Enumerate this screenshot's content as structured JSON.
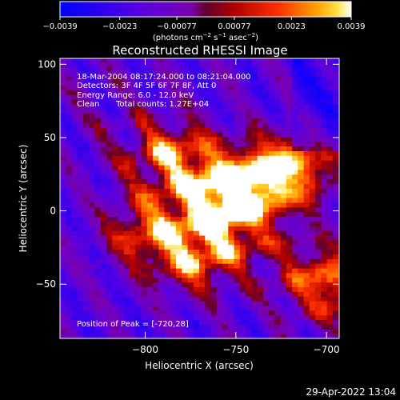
{
  "chart_data": {
    "type": "heatmap",
    "title": "Reconstructed RHESSI Image",
    "xlabel": "Heliocentric X (arcsec)",
    "ylabel": "Heliocentric Y (arcsec)",
    "xlim": [
      -847,
      -693
    ],
    "ylim": [
      -87,
      104
    ],
    "x_ticks": [
      {
        "value": -800,
        "label": "−800"
      },
      {
        "value": -750,
        "label": "−750"
      },
      {
        "value": -700,
        "label": "−700"
      }
    ],
    "y_ticks": [
      {
        "value": 100,
        "label": "100"
      },
      {
        "value": 50,
        "label": "50"
      },
      {
        "value": 0,
        "label": "0"
      },
      {
        "value": -50,
        "label": "−50"
      }
    ],
    "colorbar": {
      "min": -0.0039,
      "max": 0.0039,
      "ticks": [
        {
          "value": -0.0039,
          "label": "−0.0039"
        },
        {
          "value": -0.0023,
          "label": "−0.0023"
        },
        {
          "value": -0.00077,
          "label": "−0.00077"
        },
        {
          "value": 0.00077,
          "label": "0.00077"
        },
        {
          "value": 0.0023,
          "label": "0.0023"
        },
        {
          "value": 0.0039,
          "label": "0.0039"
        }
      ],
      "unit_main": "(photons cm",
      "unit_exp1": "−2",
      "unit_mid": " s",
      "unit_exp2": "−1",
      "unit_mid2": " asec",
      "unit_exp3": "−2",
      "unit_end": ")"
    },
    "annotations": [
      "18-Mar-2004 08:17:24.000 to 08:21:04.000",
      "Detectors: 3F 4F 5F 6F 7F 8F, Att 0",
      "Energy Range: 6.0 - 12.0 keV",
      "Clean",
      "Total counts: 1.27E+04"
    ],
    "peak_text": "Position of Peak = [-720,28]",
    "peak": {
      "x": -720,
      "y": 28
    },
    "hotspots": [
      {
        "x": -786,
        "y": 35,
        "value": 0.003
      },
      {
        "x": -760,
        "y": 10,
        "value": 0.0034
      },
      {
        "x": -740,
        "y": 20,
        "value": 0.0033
      },
      {
        "x": -720,
        "y": 28,
        "value": 0.0039
      },
      {
        "x": -800,
        "y": -15,
        "value": 0.0031
      },
      {
        "x": -775,
        "y": -35,
        "value": 0.0029
      },
      {
        "x": -700,
        "y": -50,
        "value": 0.003
      },
      {
        "x": -760,
        "y": -10,
        "value": 0.0026
      }
    ]
  },
  "footer_date": "29-Apr-2022 13:04"
}
